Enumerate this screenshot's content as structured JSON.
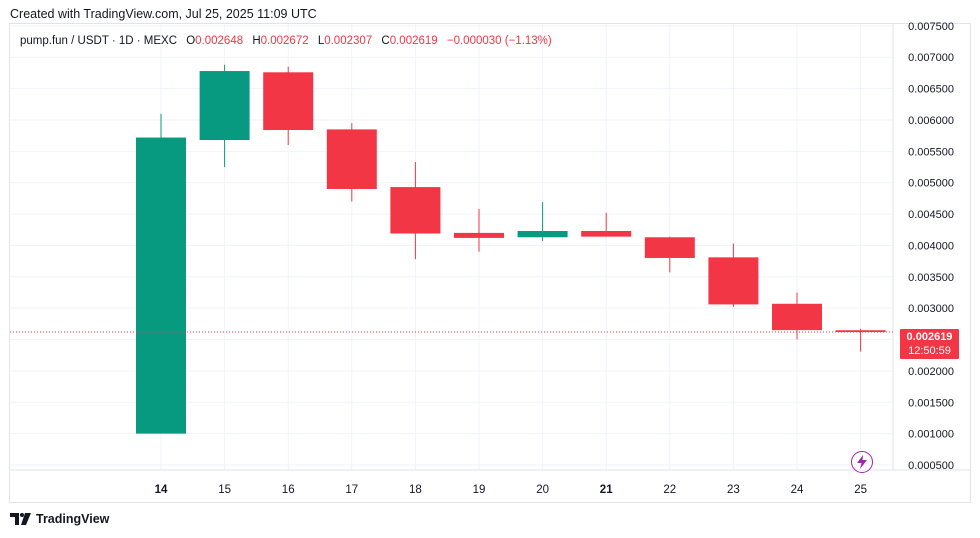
{
  "header": {
    "created": "Created with TradingView.com, Jul 25, 2025 11:09 UTC"
  },
  "legend": {
    "symbol": "pump.fun / USDT · 1D · MEXC",
    "open_label": "O",
    "open": "0.002648",
    "high_label": "H",
    "high": "0.002672",
    "low_label": "L",
    "low": "0.002307",
    "close_label": "C",
    "close": "0.002619",
    "change": "−0.000030 (−1.13%)"
  },
  "price_tag": {
    "price": "0.002619",
    "countdown": "12:50:59"
  },
  "logo": {
    "text": "TradingView"
  },
  "colors": {
    "up": "#089981",
    "down": "#f23645",
    "grid": "#f0f3fa",
    "flash": "#9c27b0"
  },
  "icons": {
    "flash": "lightning-icon",
    "logo": "tradingview-logo-icon"
  },
  "chart_data": {
    "type": "candlestick",
    "ylim": [
      0.00042,
      0.00753
    ],
    "yticks": [
      "0.000500",
      "0.001000",
      "0.001500",
      "0.002000",
      "0.002500",
      "0.003000",
      "0.003500",
      "0.004000",
      "0.004500",
      "0.005000",
      "0.005500",
      "0.006000",
      "0.006500",
      "0.007000",
      "0.007500"
    ],
    "last_price": 0.002619,
    "candles": [
      {
        "x": "14",
        "bold": true,
        "o": 0.001,
        "h": 0.0061,
        "l": 0.001,
        "c": 0.00572
      },
      {
        "x": "15",
        "bold": false,
        "o": 0.00568,
        "h": 0.00688,
        "l": 0.00525,
        "c": 0.00678
      },
      {
        "x": "16",
        "bold": false,
        "o": 0.00676,
        "h": 0.00685,
        "l": 0.0056,
        "c": 0.00584
      },
      {
        "x": "17",
        "bold": false,
        "o": 0.00585,
        "h": 0.00595,
        "l": 0.0047,
        "c": 0.0049
      },
      {
        "x": "18",
        "bold": false,
        "o": 0.00493,
        "h": 0.00533,
        "l": 0.00378,
        "c": 0.00419
      },
      {
        "x": "19",
        "bold": false,
        "o": 0.0042,
        "h": 0.00458,
        "l": 0.0039,
        "c": 0.00412
      },
      {
        "x": "20",
        "bold": false,
        "o": 0.00413,
        "h": 0.00469,
        "l": 0.00407,
        "c": 0.00423
      },
      {
        "x": "21",
        "bold": true,
        "o": 0.00423,
        "h": 0.00452,
        "l": 0.00414,
        "c": 0.00414
      },
      {
        "x": "22",
        "bold": false,
        "o": 0.00413,
        "h": 0.00414,
        "l": 0.00357,
        "c": 0.0038
      },
      {
        "x": "23",
        "bold": false,
        "o": 0.00381,
        "h": 0.00403,
        "l": 0.00302,
        "c": 0.00306
      },
      {
        "x": "24",
        "bold": false,
        "o": 0.00307,
        "h": 0.00325,
        "l": 0.0025,
        "c": 0.00265
      },
      {
        "x": "25",
        "bold": false,
        "o": 0.002648,
        "h": 0.002672,
        "l": 0.002307,
        "c": 0.002619
      }
    ]
  }
}
